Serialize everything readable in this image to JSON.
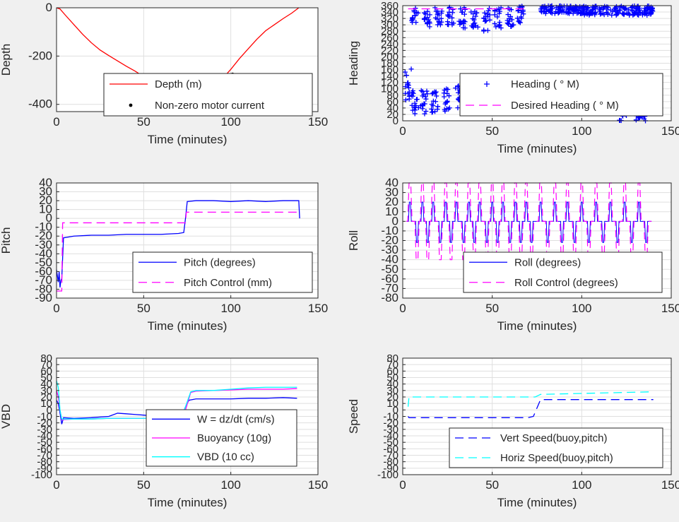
{
  "chart_data": [
    {
      "type": "line",
      "xlabel": "Time (minutes)",
      "ylabel": "Depth",
      "xlim": [
        0,
        150
      ],
      "ylim": [
        -430,
        0
      ],
      "xticks": [
        0,
        50,
        100,
        150
      ],
      "yticks": [
        0,
        -200,
        -400
      ],
      "grid": true,
      "legend_position": "bottom-right",
      "series": [
        {
          "name": "Depth (m)",
          "style": "line",
          "color": "#ff0000",
          "x": [
            0,
            2,
            5,
            10,
            15,
            20,
            25,
            30,
            35,
            40,
            45,
            50,
            55,
            60,
            65,
            70,
            72,
            75,
            78,
            80,
            85,
            90,
            95,
            100,
            105,
            110,
            115,
            120,
            125,
            130,
            135,
            139
          ],
          "y": [
            0,
            -5,
            -30,
            -70,
            -110,
            -145,
            -175,
            -198,
            -220,
            -242,
            -262,
            -285,
            -310,
            -340,
            -370,
            -400,
            -415,
            -420,
            -415,
            -405,
            -370,
            -330,
            -295,
            -255,
            -210,
            -170,
            -130,
            -95,
            -70,
            -45,
            -22,
            0
          ]
        },
        {
          "name": "Non-zero motor current",
          "style": "marker",
          "color": "#000000",
          "x": [
            71,
            72,
            73,
            74,
            75,
            76,
            77,
            78,
            79,
            82,
            97,
            101
          ],
          "y": [
            -412,
            -416,
            -419,
            -420,
            -421,
            -420,
            -418,
            -416,
            -413,
            -396,
            -303,
            -276
          ]
        }
      ]
    },
    {
      "type": "scatter",
      "xlabel": "Time (minutes)",
      "ylabel": "Heading",
      "xlim": [
        0,
        150
      ],
      "ylim": [
        0,
        360
      ],
      "xticks": [
        0,
        50,
        100,
        150
      ],
      "yticks": [
        0,
        20,
        40,
        60,
        80,
        100,
        120,
        140,
        160,
        180,
        200,
        220,
        240,
        260,
        280,
        300,
        320,
        340,
        360
      ],
      "grid": true,
      "legend_position": "bottom-right",
      "series": [
        {
          "name": "Heading (   ° M)",
          "style": "plus",
          "color": "#0000ff",
          "clusters": [
            {
              "x": [
                1,
                5
              ],
              "y": [
                165,
                60
              ]
            },
            {
              "x": [
                5,
                9
              ],
              "y": [
                95,
                15
              ]
            },
            {
              "x": [
                10,
                14
              ],
              "y": [
                95,
                20
              ]
            },
            {
              "x": [
                16,
                20
              ],
              "y": [
                100,
                25
              ]
            },
            {
              "x": [
                23,
                27
              ],
              "y": [
                105,
                30
              ]
            },
            {
              "x": [
                29,
                33
              ],
              "y": [
                110,
                35
              ]
            },
            {
              "x": [
                36,
                40
              ],
              "y": [
                105,
                30
              ]
            },
            {
              "x": [
                43,
                47
              ],
              "y": [
                110,
                35
              ]
            },
            {
              "x": [
                49,
                53
              ],
              "y": [
                105,
                30
              ]
            },
            {
              "x": [
                55,
                59
              ],
              "y": [
                100,
                25
              ]
            },
            {
              "x": [
                62,
                66
              ],
              "y": [
                100,
                25
              ]
            },
            {
              "x": [
                5,
                9
              ],
              "y": [
                355,
                300
              ]
            },
            {
              "x": [
                12,
                16
              ],
              "y": [
                350,
                290
              ]
            },
            {
              "x": [
                18,
                22
              ],
              "y": [
                355,
                295
              ]
            },
            {
              "x": [
                25,
                29
              ],
              "y": [
                355,
                300
              ]
            },
            {
              "x": [
                31,
                35
              ],
              "y": [
                355,
                290
              ]
            },
            {
              "x": [
                38,
                42
              ],
              "y": [
                355,
                285
              ]
            },
            {
              "x": [
                45,
                49
              ],
              "y": [
                355,
                270
              ]
            },
            {
              "x": [
                51,
                55
              ],
              "y": [
                355,
                290
              ]
            },
            {
              "x": [
                58,
                62
              ],
              "y": [
                355,
                295
              ]
            },
            {
              "x": [
                64,
                68
              ],
              "y": [
                360,
                300
              ]
            },
            {
              "x": [
                77,
                100
              ],
              "y": [
                360,
                335
              ]
            },
            {
              "x": [
                100,
                140
              ],
              "y": [
                360,
                330
              ]
            },
            {
              "x": [
                121,
                125
              ],
              "y": [
                50,
                0
              ]
            },
            {
              "x": [
                130,
                136
              ],
              "y": [
                45,
                0
              ]
            }
          ]
        },
        {
          "name": "Desired Heading (   ° M)",
          "style": "dash",
          "color": "#ff00ff",
          "x": [
            3,
            70
          ],
          "y": [
            350,
            350
          ]
        }
      ]
    },
    {
      "type": "line",
      "xlabel": "Time (minutes)",
      "ylabel": "Pitch",
      "xlim": [
        0,
        150
      ],
      "ylim": [
        -90,
        40
      ],
      "xticks": [
        0,
        50,
        100,
        150
      ],
      "yticks": [
        -90,
        -80,
        -70,
        -60,
        -50,
        -40,
        -30,
        -20,
        -10,
        0,
        10,
        20,
        30,
        40
      ],
      "ytick_labels": [
        "-90",
        "-80",
        "-70",
        "-60",
        "-50",
        "-40",
        "-30",
        "-20",
        "-10",
        "0",
        "10",
        "20",
        "30",
        "40"
      ],
      "grid": true,
      "legend_position": "bottom-right",
      "series": [
        {
          "name": "Pitch (degrees)",
          "style": "line",
          "color": "#0000ff",
          "x": [
            0,
            0.5,
            1,
            1.5,
            2,
            2.5,
            3,
            4,
            10,
            20,
            30,
            40,
            50,
            60,
            70,
            73,
            74,
            75,
            80,
            90,
            100,
            110,
            120,
            130,
            139,
            139.5
          ],
          "y": [
            -58,
            -65,
            -72,
            -60,
            -78,
            -70,
            -68,
            -22,
            -20,
            -19,
            -19,
            -18,
            -18,
            -18,
            -17,
            -16,
            0,
            19,
            20,
            20,
            19,
            20,
            19,
            20,
            20,
            0
          ]
        },
        {
          "name": "Pitch Control (mm)",
          "style": "dash",
          "color": "#ff00ff",
          "x": [
            0,
            2,
            3,
            3.5,
            74,
            74.5,
            139
          ],
          "y": [
            -82,
            -82,
            -82,
            -5,
            -5,
            7,
            7
          ]
        }
      ]
    },
    {
      "type": "line",
      "xlabel": "Time (minutes)",
      "ylabel": "Roll",
      "xlim": [
        0,
        150
      ],
      "ylim": [
        -80,
        40
      ],
      "xticks": [
        0,
        50,
        100,
        150
      ],
      "yticks": [
        -80,
        -70,
        -60,
        -50,
        -40,
        -30,
        -20,
        -10,
        0,
        10,
        20,
        30,
        40
      ],
      "grid": true,
      "legend_position": "bottom-right",
      "series": [
        {
          "name": "Roll (degrees)",
          "style": "line",
          "color": "#0000ff",
          "spikes_up": [
            4,
            11,
            17,
            24,
            30,
            37,
            43,
            50,
            56,
            63,
            69,
            77,
            85,
            92,
            100,
            108,
            116,
            124,
            132
          ],
          "spikes_down": [
            8,
            14,
            21,
            27,
            34,
            40,
            47,
            53,
            60,
            66,
            72,
            81,
            89,
            96,
            104,
            112,
            120,
            128,
            136
          ],
          "up_value": 20,
          "down_value": -22
        },
        {
          "name": "Roll Control (degrees)",
          "style": "dash",
          "color": "#ff00ff",
          "up_value": 40,
          "down_value": -40
        }
      ]
    },
    {
      "type": "line",
      "xlabel": "Time (minutes)",
      "ylabel": "VBD",
      "xlim": [
        0,
        150
      ],
      "ylim": [
        -100,
        80
      ],
      "xticks": [
        0,
        50,
        100,
        150
      ],
      "yticks": [
        -100,
        -90,
        -80,
        -70,
        -60,
        -50,
        -40,
        -30,
        -20,
        -10,
        0,
        10,
        20,
        30,
        40,
        50,
        60,
        70,
        80
      ],
      "grid": true,
      "legend_position": "bottom-right",
      "series": [
        {
          "name": "W = dz/dt (cm/s)",
          "style": "line",
          "color": "#0000ff",
          "x": [
            0,
            1,
            2,
            3,
            4,
            10,
            20,
            30,
            35,
            40,
            45,
            50,
            60,
            70,
            72,
            74,
            76,
            80,
            90,
            100,
            110,
            120,
            130,
            138
          ],
          "y": [
            15,
            10,
            -5,
            -22,
            -12,
            -13,
            -12,
            -10,
            -5,
            -6,
            -7,
            -8,
            -10,
            -10,
            -9,
            5,
            15,
            17,
            17,
            17,
            18,
            18,
            19,
            18
          ]
        },
        {
          "name": "Buoyancy (10g)",
          "style": "line",
          "color": "#ff00ff",
          "x": [
            0,
            1,
            2,
            3,
            10,
            20,
            30,
            40,
            50,
            60,
            70,
            72,
            74,
            77,
            80,
            90,
            100,
            110,
            120,
            130,
            138
          ],
          "y": [
            30,
            20,
            0,
            -15,
            -14,
            -14,
            -13,
            -13,
            -13,
            -12,
            -12,
            -11,
            0,
            27,
            29,
            30,
            31,
            32,
            32,
            32,
            33
          ]
        },
        {
          "name": "VBD (10 cc)",
          "style": "line",
          "color": "#00ffff",
          "x": [
            0,
            1,
            2,
            3,
            10,
            20,
            30,
            40,
            50,
            60,
            70,
            72,
            74,
            77,
            80,
            90,
            100,
            110,
            120,
            130,
            138
          ],
          "y": [
            45,
            35,
            0,
            -14,
            -14,
            -14,
            -13,
            -13,
            -13,
            -12,
            -12,
            -11,
            5,
            28,
            30,
            30,
            32,
            34,
            35,
            35,
            35
          ]
        }
      ]
    },
    {
      "type": "line",
      "xlabel": "Time (minutes)",
      "ylabel": "Speed",
      "xlim": [
        0,
        150
      ],
      "ylim": [
        -100,
        80
      ],
      "xticks": [
        0,
        50,
        100,
        150
      ],
      "yticks": [
        -100,
        -90,
        -80,
        -70,
        -60,
        -50,
        -40,
        -30,
        -20,
        -10,
        0,
        10,
        20,
        30,
        40,
        50,
        60,
        70,
        80
      ],
      "grid": true,
      "legend_position": "bottom-right",
      "series": [
        {
          "name": "Vert Speed(buoy,pitch)",
          "style": "dash",
          "color": "#0000ff",
          "x": [
            3,
            3.5,
            70,
            73,
            77,
            140
          ],
          "y": [
            -10,
            -12,
            -12,
            -10,
            16,
            16
          ]
        },
        {
          "name": "Horiz Speed(buoy,pitch)",
          "style": "dash",
          "color": "#00ffff",
          "x": [
            3,
            3.5,
            74,
            77,
            140
          ],
          "y": [
            5,
            20,
            20,
            24,
            28
          ]
        }
      ]
    }
  ]
}
